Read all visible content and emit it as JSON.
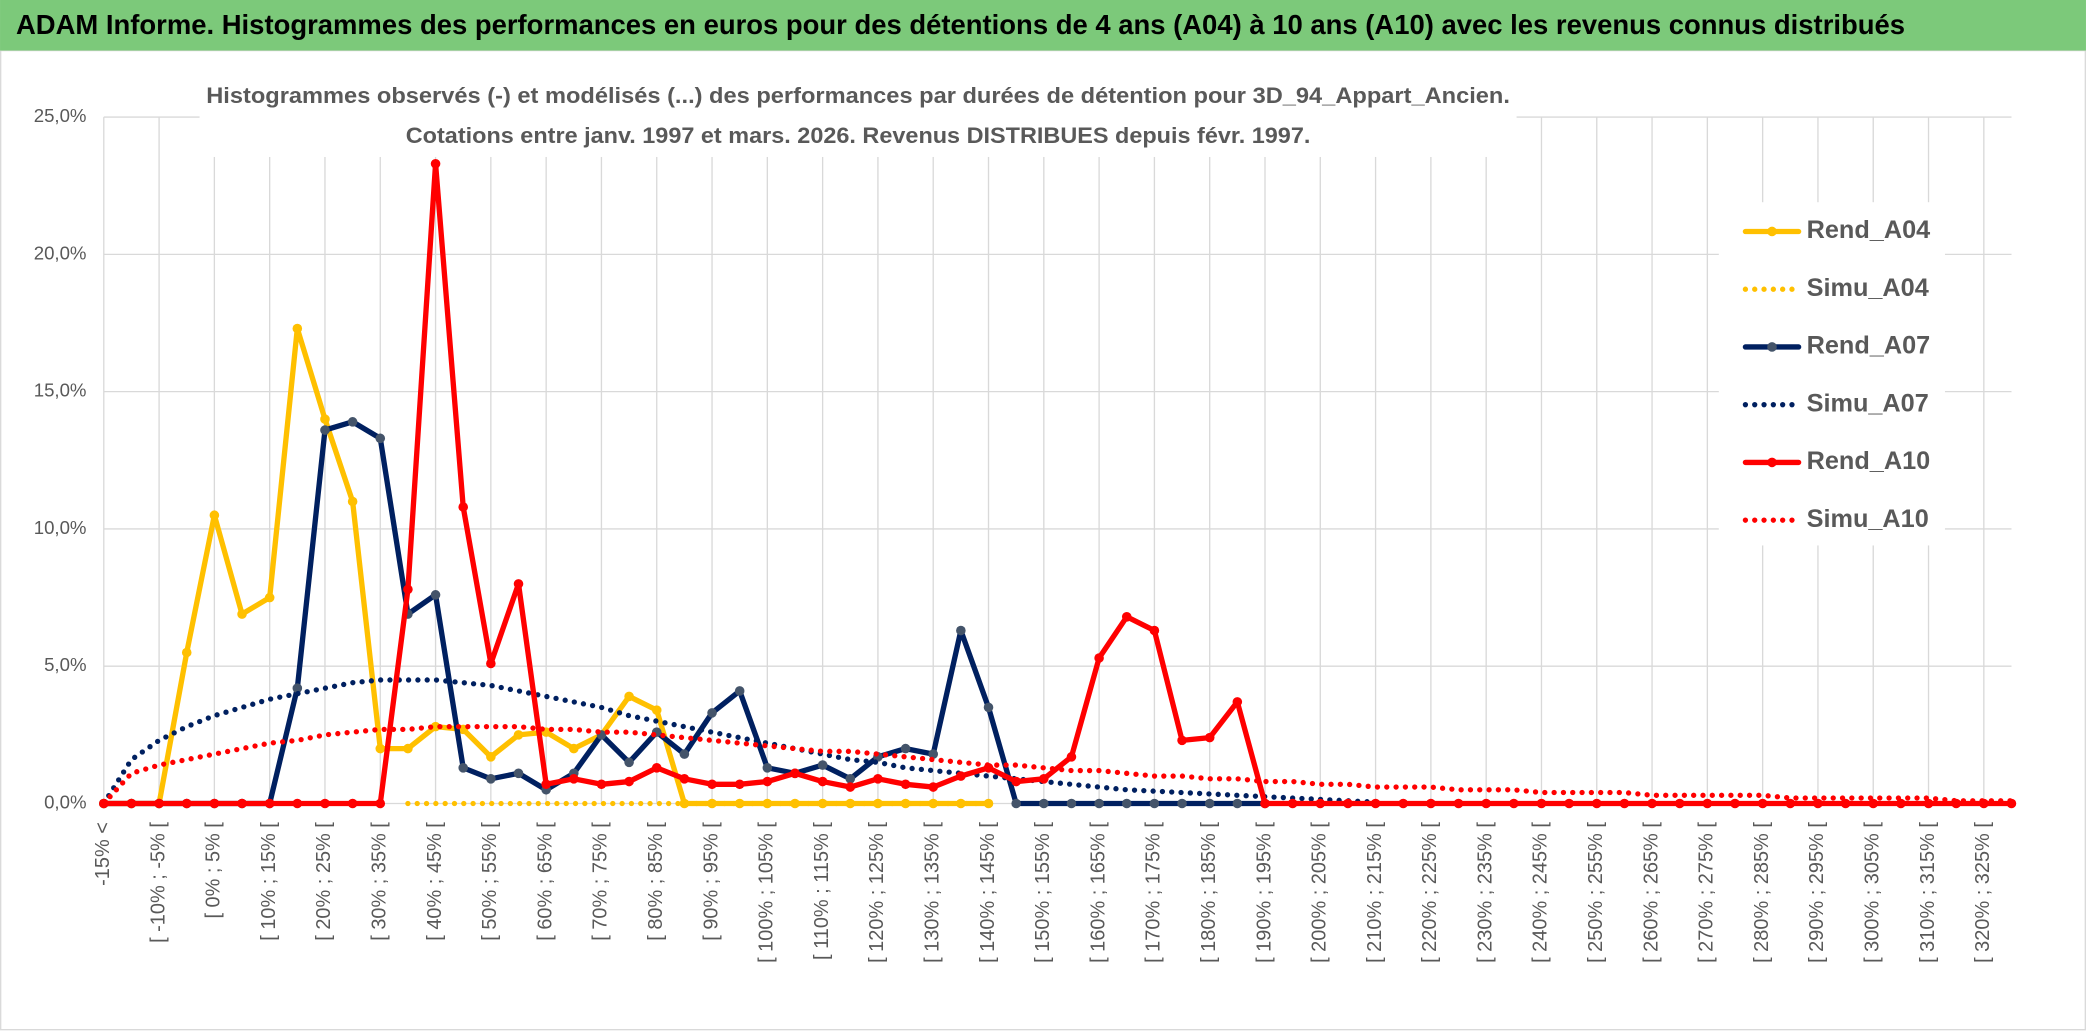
{
  "chart_data": {
    "type": "line",
    "title": "ADAM Informe. Histogrammes des performances en euros pour des détentions de 4 ans (A04) à 10 ans (A10) avec les revenus connus distribués",
    "subtitle": [
      "Histogrammes observés (-) et modélisés (...) des performances par durées de détention pour 3D_94_Appart_Ancien.",
      "Cotations entre janv. 1997 et mars. 2026. Revenus DISTRIBUES depuis févr. 1997."
    ],
    "categories": [
      "-15% <",
      null,
      "[ -10% ; -5% [",
      null,
      "[ 0% ; 5% [",
      null,
      "[ 10% ; 15% [",
      null,
      "[ 20% ; 25% [",
      null,
      "[ 30% ; 35% [",
      null,
      "[ 40% ; 45% [",
      null,
      "[ 50% ; 55% [",
      null,
      "[ 60% ; 65% [",
      null,
      "[ 70% ; 75% [",
      null,
      "[ 80% ; 85% [",
      null,
      "[ 90% ; 95% [",
      null,
      "[ 100% ; 105% [",
      null,
      "[ 110% ; 115% [",
      null,
      "[ 120% ; 125% [",
      null,
      "[ 130% ; 135% [",
      null,
      "[ 140% ; 145% [",
      null,
      "[ 150% ; 155% [",
      null,
      "[ 160% ; 165% [",
      null,
      "[ 170% ; 175% [",
      null,
      "[ 180% ; 185% [",
      null,
      "[ 190% ; 195% [",
      null,
      "[ 200% ; 205% [",
      null,
      "[ 210% ; 215% [",
      null,
      "[ 220% ; 225% [",
      null,
      "[ 230% ; 235% [",
      null,
      "[ 240% ; 245% [",
      null,
      "[ 250% ; 255% [",
      null,
      "[ 260% ; 265% [",
      null,
      "[ 270% ; 275% [",
      null,
      "[ 280% ; 285% [",
      null,
      "[ 290% ; 295% [",
      null,
      "[ 300% ; 305% [",
      null,
      "[ 310% ; 315% [",
      null,
      "[ 320% ; 325% [",
      null
    ],
    "series": [
      {
        "name": "Rend_A04",
        "color": "#ffc000",
        "style": "solid",
        "marker": true,
        "values": [
          0,
          0,
          0,
          5.5,
          10.5,
          6.9,
          7.5,
          17.3,
          14.0,
          11.0,
          2.0,
          2.0,
          2.8,
          2.7,
          1.7,
          2.5,
          2.6,
          2.0,
          2.5,
          3.9,
          3.4,
          0,
          0,
          0,
          0,
          0,
          0,
          0,
          0,
          0,
          0,
          0,
          0,
          null,
          null,
          null,
          null,
          null,
          null,
          null,
          null,
          null,
          null,
          null,
          null,
          null,
          null,
          null,
          null,
          null,
          null,
          null,
          null,
          null,
          null,
          null,
          null,
          null,
          null,
          null,
          null,
          null,
          null,
          null,
          null,
          null,
          null,
          null,
          null,
          null
        ]
      },
      {
        "name": "Simu_A04",
        "color": "#ffc000",
        "style": "dotted",
        "marker": false,
        "values": [
          null,
          null,
          null,
          null,
          null,
          null,
          null,
          null,
          null,
          null,
          null,
          0,
          0,
          0,
          0,
          0,
          0,
          0,
          0,
          0,
          0,
          0,
          0,
          0,
          0,
          0,
          0,
          0,
          0,
          0,
          0,
          0,
          0,
          null,
          null,
          null,
          null,
          null,
          null,
          null,
          null,
          null,
          null,
          null,
          null,
          null,
          null,
          null,
          null,
          null,
          null,
          null,
          null,
          null,
          null,
          null,
          null,
          null,
          null,
          null,
          null,
          null,
          null,
          null,
          null,
          null,
          null,
          null,
          null,
          null
        ]
      },
      {
        "name": "Rend_A07",
        "color": "#002060",
        "marker_color": "#44546a",
        "style": "solid",
        "marker": true,
        "values": [
          0,
          0,
          0,
          0,
          0,
          0,
          0,
          4.2,
          13.6,
          13.9,
          13.3,
          6.9,
          7.6,
          1.3,
          0.9,
          1.1,
          0.5,
          1.1,
          2.5,
          1.5,
          2.6,
          1.8,
          3.3,
          4.1,
          1.3,
          1.1,
          1.4,
          0.9,
          1.7,
          2.0,
          1.8,
          6.3,
          3.5,
          0,
          0,
          0,
          0,
          0,
          0,
          0,
          0,
          0,
          0,
          null,
          null,
          null,
          null,
          null,
          null,
          null,
          null,
          null,
          null,
          null,
          null,
          null,
          null,
          null,
          null,
          null,
          null,
          null,
          null,
          null,
          null,
          null,
          null,
          null,
          null,
          null
        ]
      },
      {
        "name": "Simu_A07",
        "color": "#002060",
        "style": "dotted",
        "marker": false,
        "values": [
          0,
          1.6,
          2.3,
          2.8,
          3.2,
          3.5,
          3.8,
          4.0,
          4.2,
          4.4,
          4.5,
          4.5,
          4.5,
          4.4,
          4.3,
          4.1,
          3.9,
          3.7,
          3.5,
          3.2,
          3.0,
          2.8,
          2.6,
          2.4,
          2.2,
          2.0,
          1.8,
          1.6,
          1.5,
          1.3,
          1.2,
          1.1,
          1.0,
          0.9,
          0.8,
          0.7,
          0.6,
          0.5,
          0.45,
          0.4,
          0.35,
          0.3,
          0.25,
          0.2,
          0.15,
          0.1,
          0.05,
          null,
          null,
          null,
          null,
          null,
          null,
          null,
          null,
          null,
          null,
          null,
          null,
          null,
          null,
          null,
          null,
          null,
          null,
          null,
          null,
          null,
          null,
          null
        ]
      },
      {
        "name": "Rend_A10",
        "color": "#ff0000",
        "style": "solid",
        "marker": true,
        "values": [
          0,
          0,
          0,
          0,
          0,
          0,
          0,
          0,
          0,
          0,
          0,
          7.8,
          23.3,
          10.8,
          5.1,
          8.0,
          0.7,
          0.9,
          0.7,
          0.8,
          1.3,
          0.9,
          0.7,
          0.7,
          0.8,
          1.1,
          0.8,
          0.6,
          0.9,
          0.7,
          0.6,
          1.0,
          1.3,
          0.8,
          0.9,
          1.7,
          5.3,
          6.8,
          6.3,
          2.3,
          2.4,
          3.7,
          0,
          0,
          0,
          0,
          0,
          0,
          0,
          0,
          0,
          0,
          0,
          0,
          0,
          0,
          0,
          0,
          0,
          0,
          0,
          0,
          0,
          0,
          0,
          0,
          0,
          0,
          0,
          0
        ]
      },
      {
        "name": "Simu_A10",
        "color": "#ff0000",
        "style": "dotted",
        "marker": false,
        "values": [
          0,
          1.1,
          1.4,
          1.6,
          1.8,
          2.0,
          2.2,
          2.3,
          2.5,
          2.6,
          2.7,
          2.7,
          2.8,
          2.8,
          2.8,
          2.8,
          2.7,
          2.7,
          2.6,
          2.6,
          2.5,
          2.4,
          2.3,
          2.2,
          2.1,
          2.0,
          1.9,
          1.9,
          1.8,
          1.7,
          1.6,
          1.5,
          1.4,
          1.4,
          1.3,
          1.2,
          1.2,
          1.1,
          1.0,
          1.0,
          0.9,
          0.9,
          0.8,
          0.8,
          0.7,
          0.7,
          0.6,
          0.6,
          0.6,
          0.5,
          0.5,
          0.5,
          0.4,
          0.4,
          0.4,
          0.4,
          0.3,
          0.3,
          0.3,
          0.3,
          0.3,
          0.2,
          0.2,
          0.2,
          0.2,
          0.2,
          0.2,
          0.1,
          0.1,
          0.1
        ]
      }
    ],
    "ylim": [
      0,
      25
    ],
    "yticks": [
      {
        "value": 0,
        "label": "0,0%"
      },
      {
        "value": 5,
        "label": "5,0%"
      },
      {
        "value": 10,
        "label": "10,0%"
      },
      {
        "value": 15,
        "label": "15,0%"
      },
      {
        "value": 20,
        "label": "20,0%"
      },
      {
        "value": 25,
        "label": "25,0%"
      }
    ],
    "grid": true,
    "xgrid": true,
    "legend": "right"
  }
}
